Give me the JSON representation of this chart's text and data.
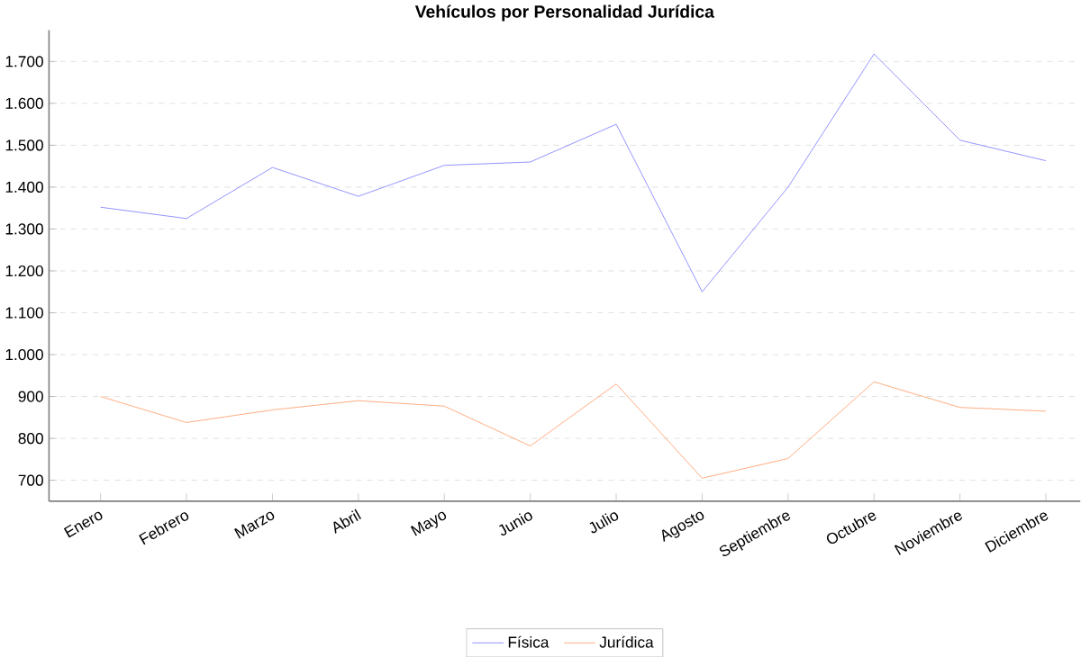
{
  "chart_data": {
    "type": "line",
    "title": "Vehículos por Personalidad Jurídica",
    "categories": [
      "Enero",
      "Febrero",
      "Marzo",
      "Abril",
      "Mayo",
      "Junio",
      "Julio",
      "Agosto",
      "Septiembre",
      "Octubre",
      "Noviembre",
      "Diciembre"
    ],
    "series": [
      {
        "name": "Física",
        "color": "#7b7bff",
        "values": [
          1352,
          1325,
          1447,
          1378,
          1452,
          1460,
          1550,
          1150,
          1400,
          1718,
          1512,
          1463
        ]
      },
      {
        "name": "Jurídica",
        "color": "#ff9a66",
        "values": [
          900,
          838,
          868,
          890,
          877,
          782,
          930,
          705,
          752,
          935,
          874,
          865
        ]
      }
    ],
    "ylim": [
      650,
      1775
    ],
    "yticks": [
      {
        "value": 700,
        "label": "700"
      },
      {
        "value": 800,
        "label": "800"
      },
      {
        "value": 900,
        "label": "900"
      },
      {
        "value": 1000,
        "label": "1.000"
      },
      {
        "value": 1100,
        "label": "1.100"
      },
      {
        "value": 1200,
        "label": "1.200"
      },
      {
        "value": 1300,
        "label": "1.300"
      },
      {
        "value": 1400,
        "label": "1.400"
      },
      {
        "value": 1500,
        "label": "1.500"
      },
      {
        "value": 1600,
        "label": "1.600"
      },
      {
        "value": 1700,
        "label": "1.700"
      }
    ],
    "grid": "y",
    "legend": "bottom",
    "marker": "none",
    "line_style": "solid"
  }
}
